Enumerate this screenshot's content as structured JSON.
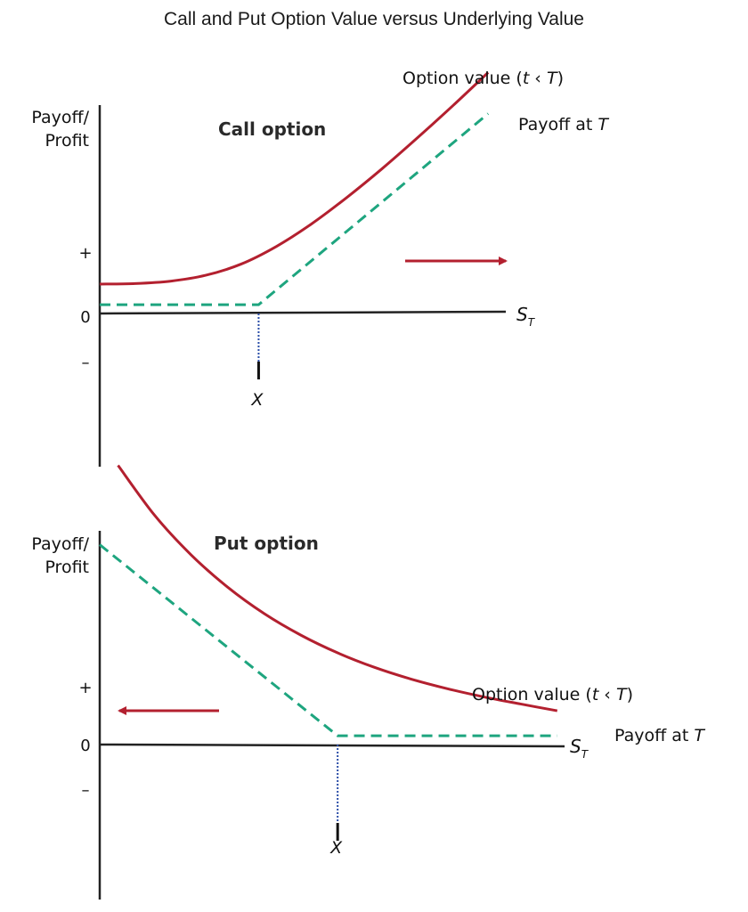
{
  "title": "Call and Put Option Value versus Underlying Value",
  "colors": {
    "option_value": "#b3202f",
    "payoff": "#1ea57f",
    "strike_line": "#2b4ea8",
    "axis": "#222222"
  },
  "chart_data": [
    {
      "type": "line",
      "panel": "call",
      "label": "Call option",
      "ylabel_lines": [
        "Payoff/",
        "Profit"
      ],
      "xlabel_main": "S",
      "xlabel_sub": "T",
      "yticks": [
        "+",
        "0",
        "–"
      ],
      "strike_label": "X",
      "strike": 4.5,
      "xlim": [
        0,
        12
      ],
      "ylim": [
        -4,
        11
      ],
      "payoff_offset": 0.3,
      "arrow_direction": "right",
      "series": [
        {
          "name": "Option value (t < T)",
          "name_main": "Option value (",
          "name_var1": "t",
          "name_mid": " ‹ ",
          "name_var2": "T",
          "name_end": ")",
          "x": [
            0,
            1,
            2,
            3,
            4,
            5,
            6,
            7,
            8,
            9,
            10,
            11
          ],
          "y": [
            1.0,
            1.02,
            1.1,
            1.3,
            1.68,
            2.28,
            3.05,
            3.95,
            4.93,
            5.98,
            7.07,
            8.2
          ]
        },
        {
          "name": "Payoff at T",
          "name_main": "Payoff at ",
          "name_var": "T",
          "x": [
            0,
            4.5,
            11
          ],
          "y": [
            0.3,
            0.3,
            6.8
          ]
        }
      ]
    },
    {
      "type": "line",
      "panel": "put",
      "label": "Put option",
      "ylabel_lines": [
        "Payoff/",
        "Profit"
      ],
      "xlabel_main": "S",
      "xlabel_sub": "T",
      "yticks": [
        "+",
        "0",
        "–"
      ],
      "strike_label": "X",
      "strike": 6.5,
      "xlim": [
        0,
        13
      ],
      "ylim": [
        -4,
        11
      ],
      "payoff_offset": 0.3,
      "arrow_direction": "left",
      "series": [
        {
          "name": "Option value (t < T)",
          "name_main": "Option value (",
          "name_var1": "t",
          "name_mid": " ‹ ",
          "name_var2": "T",
          "name_end": ")",
          "x": [
            0.5,
            1.5,
            2.5,
            3.5,
            4.5,
            5.5,
            6.5,
            7.5,
            8.5,
            9.5,
            10.5,
            11.5,
            12.5
          ],
          "y": [
            9.5,
            7.8,
            6.45,
            5.35,
            4.45,
            3.72,
            3.12,
            2.63,
            2.23,
            1.9,
            1.62,
            1.38,
            1.15
          ]
        },
        {
          "name": "Payoff at T",
          "name_main": "Payoff at ",
          "name_var": "T",
          "x": [
            0,
            6.5,
            12.5
          ],
          "y": [
            6.8,
            0.3,
            0.3
          ]
        }
      ]
    }
  ]
}
